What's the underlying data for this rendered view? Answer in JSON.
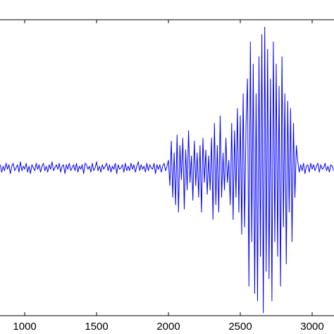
{
  "chart_data": {
    "type": "line",
    "xlim": [
      828,
      3152
    ],
    "ylim": [
      -1,
      1
    ],
    "xticks": [
      1000,
      1500,
      2000,
      2500,
      3000
    ],
    "x": [
      830,
      840,
      850,
      860,
      870,
      880,
      890,
      900,
      910,
      920,
      930,
      940,
      950,
      960,
      970,
      980,
      990,
      1000,
      1010,
      1020,
      1030,
      1040,
      1050,
      1060,
      1070,
      1080,
      1090,
      1100,
      1110,
      1120,
      1130,
      1140,
      1150,
      1160,
      1170,
      1180,
      1190,
      1200,
      1210,
      1220,
      1230,
      1240,
      1250,
      1260,
      1270,
      1280,
      1290,
      1300,
      1310,
      1320,
      1330,
      1340,
      1350,
      1360,
      1370,
      1380,
      1390,
      1400,
      1410,
      1420,
      1430,
      1440,
      1450,
      1460,
      1470,
      1480,
      1490,
      1500,
      1510,
      1520,
      1530,
      1540,
      1550,
      1560,
      1570,
      1580,
      1590,
      1600,
      1610,
      1620,
      1630,
      1640,
      1650,
      1660,
      1670,
      1680,
      1690,
      1700,
      1710,
      1720,
      1730,
      1740,
      1750,
      1760,
      1770,
      1780,
      1790,
      1800,
      1810,
      1820,
      1830,
      1840,
      1850,
      1860,
      1870,
      1880,
      1890,
      1900,
      1910,
      1920,
      1930,
      1940,
      1950,
      1960,
      1970,
      1980,
      1990,
      2000,
      2010,
      2020,
      2030,
      2040,
      2050,
      2060,
      2070,
      2080,
      2090,
      2100,
      2110,
      2120,
      2130,
      2140,
      2150,
      2160,
      2170,
      2180,
      2190,
      2200,
      2210,
      2220,
      2230,
      2240,
      2250,
      2260,
      2270,
      2280,
      2290,
      2300,
      2310,
      2320,
      2330,
      2340,
      2350,
      2360,
      2370,
      2380,
      2390,
      2400,
      2410,
      2420,
      2430,
      2440,
      2450,
      2460,
      2470,
      2480,
      2490,
      2500,
      2510,
      2520,
      2530,
      2540,
      2550,
      2560,
      2570,
      2580,
      2590,
      2600,
      2610,
      2620,
      2630,
      2640,
      2650,
      2660,
      2670,
      2680,
      2690,
      2700,
      2710,
      2720,
      2730,
      2740,
      2750,
      2760,
      2770,
      2780,
      2790,
      2800,
      2810,
      2820,
      2830,
      2840,
      2850,
      2860,
      2870,
      2880,
      2890,
      2900,
      2910,
      2920,
      2930,
      2940,
      2950,
      2960,
      2970,
      2980,
      2990,
      3000,
      3010,
      3020,
      3030,
      3040,
      3050,
      3060,
      3070,
      3080,
      3090,
      3100,
      3110,
      3120,
      3130,
      3140,
      3150
    ],
    "series": [
      {
        "color": "#0000ff",
        "values": [
          0.02,
          -0.03,
          0.01,
          -0.02,
          0.03,
          -0.01,
          0.02,
          -0.04,
          0.01,
          0.03,
          -0.02,
          0.0,
          0.02,
          -0.03,
          0.04,
          -0.02,
          0.01,
          -0.01,
          0.03,
          -0.03,
          0.01,
          -0.04,
          0.02,
          0.0,
          -0.02,
          0.03,
          -0.01,
          0.02,
          -0.03,
          0.01,
          0.03,
          -0.02,
          0.01,
          -0.03,
          0.02,
          -0.01,
          0.04,
          -0.02,
          0.0,
          0.02,
          -0.01,
          0.03,
          -0.03,
          0.01,
          0.02,
          -0.04,
          0.02,
          -0.01,
          0.03,
          -0.02,
          0.0,
          0.02,
          -0.02,
          0.03,
          -0.03,
          0.01,
          -0.01,
          0.02,
          -0.04,
          0.03,
          0.02,
          -0.01,
          0.01,
          -0.03,
          0.03,
          -0.02,
          0.0,
          0.04,
          -0.02,
          0.01,
          -0.03,
          0.02,
          -0.01,
          0.01,
          0.03,
          -0.02,
          0.02,
          -0.03,
          0.01,
          -0.01,
          0.03,
          -0.04,
          0.02,
          -0.01,
          0.0,
          0.02,
          -0.03,
          0.03,
          -0.02,
          0.01,
          -0.02,
          0.03,
          -0.01,
          0.02,
          -0.03,
          0.01,
          0.04,
          -0.02,
          0.02,
          -0.01,
          0.01,
          -0.03,
          0.03,
          -0.02,
          0.02,
          0.0,
          -0.01,
          0.03,
          -0.04,
          0.02,
          -0.01,
          0.02,
          -0.03,
          0.01,
          0.03,
          -0.02,
          0.01,
          0.05,
          -0.12,
          0.18,
          -0.2,
          0.1,
          -0.25,
          0.22,
          -0.3,
          0.15,
          -0.08,
          0.2,
          -0.28,
          0.12,
          -0.15,
          0.25,
          -0.1,
          0.08,
          -0.22,
          0.18,
          -0.12,
          0.1,
          -0.2,
          0.15,
          -0.3,
          0.2,
          -0.1,
          0.12,
          -0.18,
          0.08,
          -0.15,
          0.2,
          -0.35,
          0.3,
          -0.25,
          0.15,
          -0.3,
          0.35,
          -0.2,
          0.1,
          -0.15,
          0.2,
          -0.1,
          0.05,
          -0.25,
          0.3,
          -0.35,
          0.25,
          -0.2,
          0.4,
          -0.3,
          0.35,
          -0.45,
          0.5,
          -0.4,
          0.3,
          0.6,
          -0.8,
          0.85,
          -0.5,
          0.7,
          -0.85,
          0.5,
          -0.9,
          0.75,
          -0.6,
          0.9,
          -0.98,
          0.95,
          -0.7,
          0.8,
          -0.75,
          0.6,
          -0.9,
          0.85,
          -0.5,
          0.7,
          -0.6,
          0.55,
          -0.8,
          0.75,
          -0.4,
          0.5,
          -0.65,
          0.45,
          -0.3,
          0.4,
          -0.5,
          0.3,
          -0.2,
          0.15,
          0.04,
          -0.03,
          0.02,
          -0.02,
          0.03,
          -0.04,
          0.01,
          0.02,
          -0.03,
          0.03,
          -0.01,
          0.02,
          -0.02,
          0.01,
          0.03,
          -0.03,
          0.02,
          -0.01,
          0.0,
          0.03,
          -0.02,
          0.01,
          -0.03,
          0.02,
          0.01,
          -0.02
        ]
      }
    ]
  }
}
